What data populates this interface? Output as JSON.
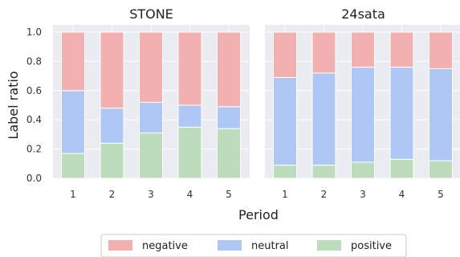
{
  "chart_data": {
    "type": "bar",
    "stacked": true,
    "ylabel": "Label ratio",
    "xlabel": "Period",
    "ylim": [
      0,
      1.0
    ],
    "yticks": [
      "0.0",
      "0.2",
      "0.4",
      "0.6",
      "0.8",
      "1.0"
    ],
    "grid": true,
    "legend_position": "bottom-center",
    "legend": [
      "negative",
      "neutral",
      "positive"
    ],
    "colors": {
      "negative": "#f2b0b0",
      "neutral": "#aec7f5",
      "positive": "#bcdcbc"
    },
    "panels": [
      {
        "title": "STONE",
        "categories": [
          "1",
          "2",
          "3",
          "4",
          "5"
        ],
        "series": [
          {
            "name": "positive",
            "values": [
              0.17,
              0.24,
              0.31,
              0.35,
              0.34
            ]
          },
          {
            "name": "neutral",
            "values": [
              0.43,
              0.24,
              0.21,
              0.15,
              0.15
            ]
          },
          {
            "name": "negative",
            "values": [
              0.4,
              0.52,
              0.48,
              0.5,
              0.51
            ]
          }
        ]
      },
      {
        "title": "24sata",
        "categories": [
          "1",
          "2",
          "3",
          "4",
          "5"
        ],
        "series": [
          {
            "name": "positive",
            "values": [
              0.09,
              0.09,
              0.11,
              0.13,
              0.12
            ]
          },
          {
            "name": "neutral",
            "values": [
              0.6,
              0.63,
              0.65,
              0.63,
              0.63
            ]
          },
          {
            "name": "negative",
            "values": [
              0.31,
              0.28,
              0.24,
              0.24,
              0.25
            ]
          }
        ]
      }
    ]
  }
}
